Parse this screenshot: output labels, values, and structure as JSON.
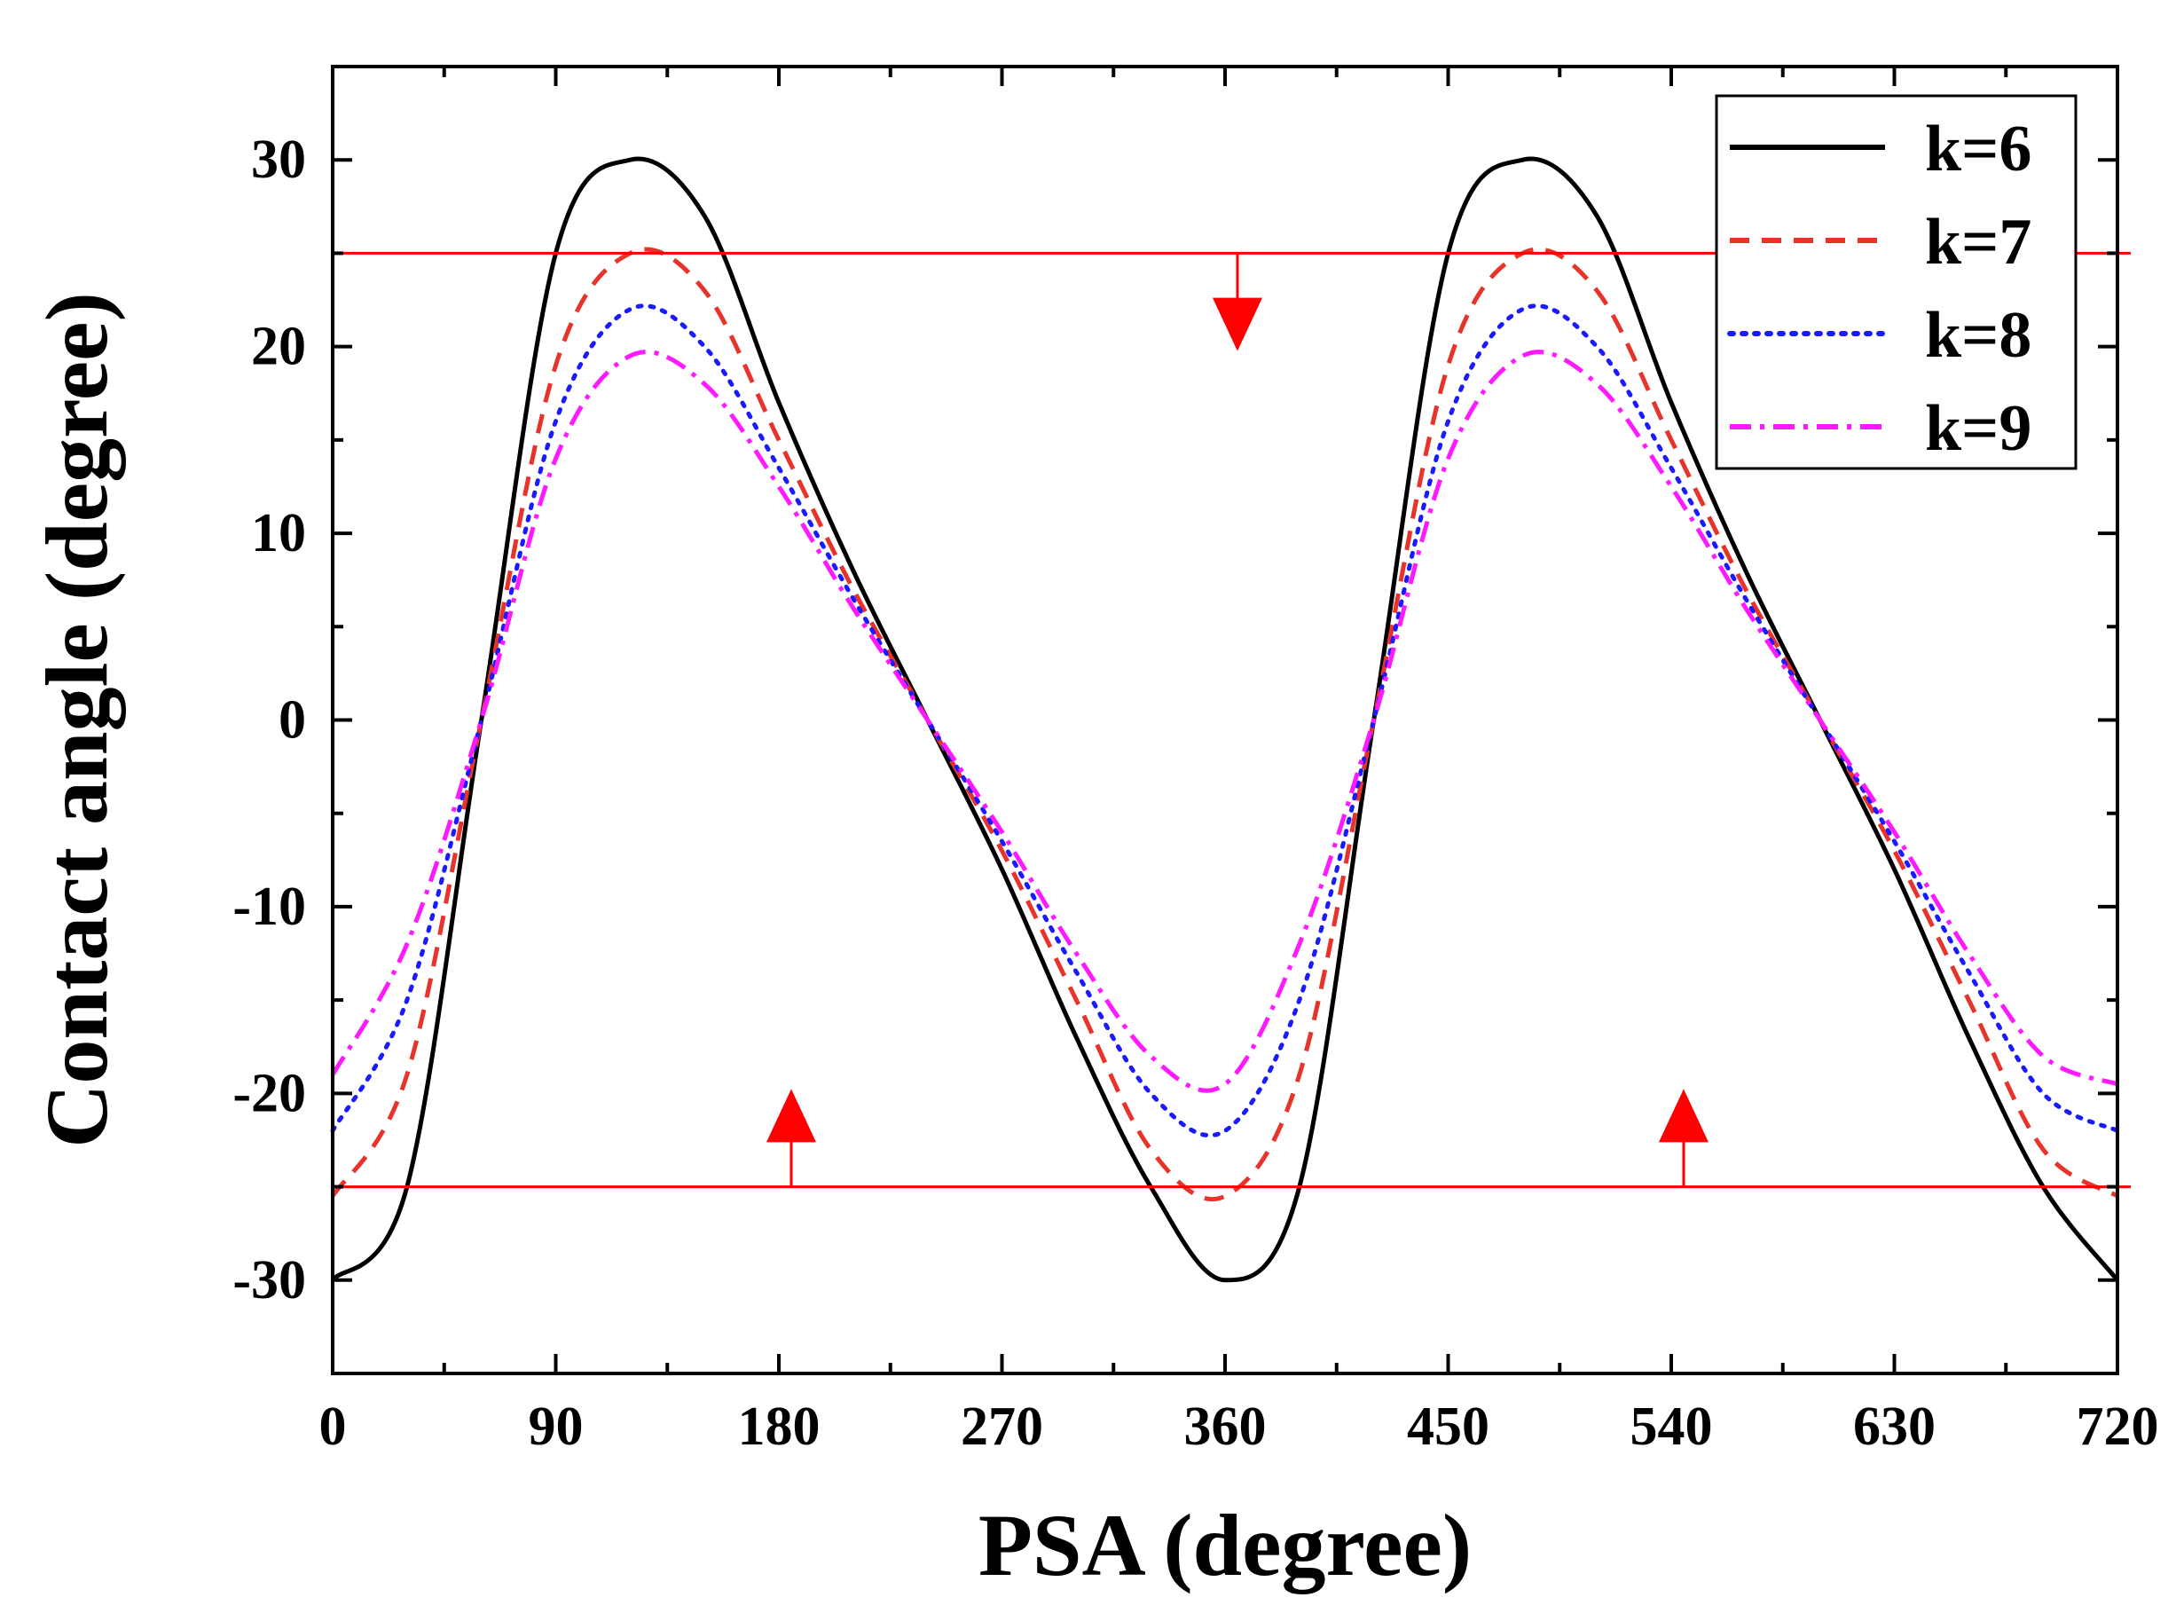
{
  "chart_data": {
    "type": "line",
    "title": "",
    "xlabel": "PSA (degree)",
    "ylabel": "Contact angle (degree)",
    "xlim": [
      0,
      720
    ],
    "ylim": [
      -35,
      35
    ],
    "xticks": [
      0,
      90,
      180,
      270,
      360,
      450,
      540,
      630,
      720
    ],
    "yticks": [
      -30,
      -20,
      -10,
      0,
      10,
      20,
      30
    ],
    "grid": false,
    "legend_position": "top-right",
    "series": [
      {
        "name": "k=6",
        "color": "#000000",
        "dash": "solid",
        "x": [
          0,
          30,
          60,
          90,
          120,
          150,
          180,
          210,
          240,
          270,
          300,
          330,
          360,
          390,
          420,
          450,
          480,
          510,
          540,
          570,
          600,
          630,
          660,
          690,
          720
        ],
        "y": [
          -30,
          -25,
          0,
          25,
          30,
          27,
          17,
          8,
          0,
          -8,
          -17,
          -25,
          -30,
          -25,
          0,
          25,
          30,
          27,
          17,
          8,
          0,
          -8,
          -17,
          -25,
          -30
        ]
      },
      {
        "name": "k=7",
        "color": "#e8332a",
        "dash": "dashed",
        "x": [
          0,
          30,
          60,
          90,
          120,
          150,
          180,
          210,
          240,
          270,
          300,
          330,
          360,
          390,
          420,
          450,
          480,
          510,
          540,
          570,
          600,
          630,
          660,
          690,
          720
        ],
        "y": [
          -25.5,
          -19,
          0,
          19,
          25,
          23,
          15,
          7,
          0,
          -7,
          -15,
          -23,
          -25.5,
          -19,
          0,
          19,
          25,
          23,
          15,
          7,
          0,
          -7,
          -15,
          -23,
          -25.5
        ]
      },
      {
        "name": "k=8",
        "color": "#1a1aff",
        "dash": "dotted",
        "x": [
          0,
          30,
          60,
          90,
          120,
          150,
          180,
          210,
          240,
          270,
          300,
          330,
          360,
          390,
          420,
          450,
          480,
          510,
          540,
          570,
          600,
          630,
          660,
          690,
          720
        ],
        "y": [
          -22,
          -15,
          0,
          16,
          22,
          20,
          13.5,
          6.5,
          0,
          -6.5,
          -13.5,
          -20,
          -22,
          -15,
          0,
          16,
          22,
          20,
          13.5,
          6.5,
          0,
          -6.5,
          -13.5,
          -20,
          -22
        ]
      },
      {
        "name": "k=9",
        "color": "#ff19ff",
        "dash": "dashdot",
        "x": [
          0,
          30,
          60,
          90,
          120,
          150,
          180,
          210,
          240,
          270,
          300,
          330,
          360,
          390,
          420,
          450,
          480,
          510,
          540,
          570,
          600,
          630,
          660,
          690,
          720
        ],
        "y": [
          -19,
          -12,
          0,
          14,
          19.5,
          18,
          12.5,
          6,
          0,
          -6,
          -12.5,
          -18,
          -19.5,
          -12,
          0,
          14,
          19.5,
          18,
          12.5,
          6,
          0,
          -6,
          -12.5,
          -18,
          -19.5
        ]
      }
    ],
    "annotations": {
      "reference_lines": [
        {
          "name": "upper-reference-line",
          "y": 25,
          "color": "#ff0000"
        },
        {
          "name": "lower-reference-line",
          "y": -25,
          "color": "#ff0000"
        }
      ],
      "arrows": [
        {
          "name": "down-arrow",
          "x": 365,
          "from_y": 25,
          "to_y": 20,
          "direction": "down"
        },
        {
          "name": "up-arrow-left",
          "x": 185,
          "from_y": -25,
          "to_y": -20,
          "direction": "up"
        },
        {
          "name": "up-arrow-right",
          "x": 545,
          "from_y": -25,
          "to_y": -20,
          "direction": "up"
        }
      ]
    }
  }
}
